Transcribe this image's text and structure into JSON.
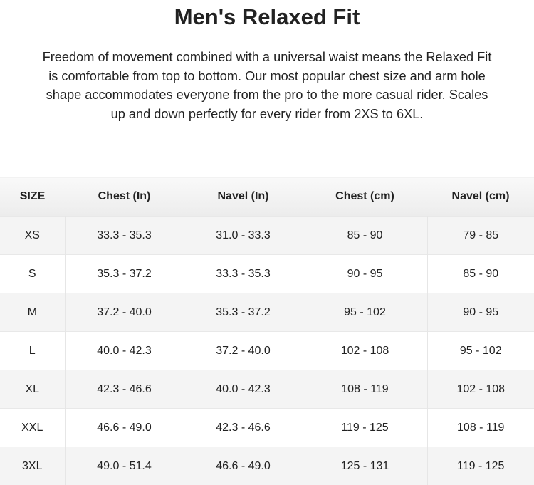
{
  "title": "Men's Relaxed Fit",
  "description": "Freedom of movement combined with a universal waist means the Relaxed Fit is comfortable from top to bottom. Our most popular chest size and arm hole shape accommodates everyone from the pro to the more casual rider. Scales up and down perfectly for every rider from 2XS to 6XL.",
  "table": {
    "headers": [
      "SIZE",
      "Chest (In)",
      "Navel (In)",
      "Chest (cm)",
      "Navel (cm)"
    ],
    "rows": [
      [
        "XS",
        "33.3 - 35.3",
        "31.0 - 33.3",
        "85 - 90",
        "79 - 85"
      ],
      [
        "S",
        "35.3 - 37.2",
        "33.3 - 35.3",
        "90 - 95",
        "85 - 90"
      ],
      [
        "M",
        "37.2 - 40.0",
        "35.3 - 37.2",
        "95 - 102",
        "90 - 95"
      ],
      [
        "L",
        "40.0 - 42.3",
        "37.2 - 40.0",
        "102 - 108",
        "95 - 102"
      ],
      [
        "XL",
        "42.3 - 46.6",
        "40.0 - 42.3",
        "108 - 119",
        "102 - 108"
      ],
      [
        "XXL",
        "46.6 - 49.0",
        "42.3 - 46.6",
        "119 - 125",
        "108 - 119"
      ],
      [
        "3XL",
        "49.0 - 51.4",
        "46.6 - 49.0",
        "125 - 131",
        "119 - 125"
      ]
    ]
  }
}
